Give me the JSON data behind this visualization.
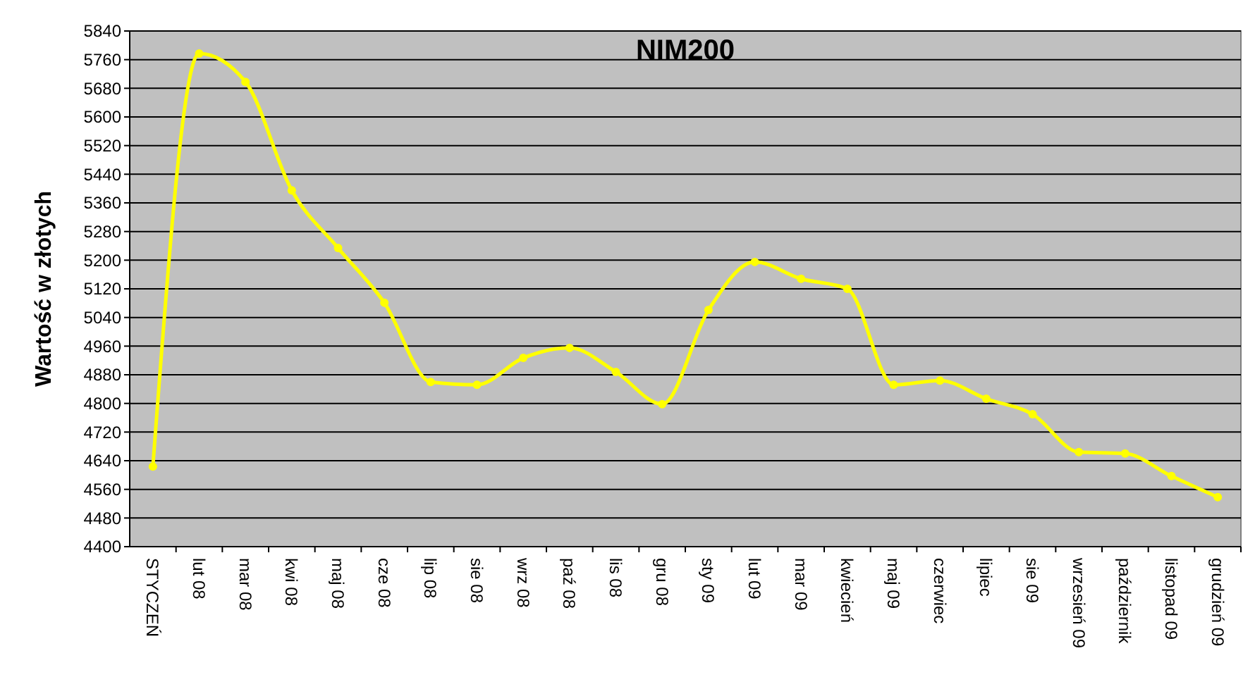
{
  "chart_data": {
    "type": "line",
    "title": "NIM200",
    "ylabel": "Wartość w złotych",
    "categories": [
      "STYCZEŃ",
      "lut 08",
      "mar 08",
      "kwi 08",
      "maj 08",
      "cze 08",
      "lip 08",
      "sie 08",
      "wrz 08",
      "paź 08",
      "lis 08",
      "gru 08",
      "sty 09",
      "lut 09",
      "mar 09",
      "kwiecień",
      "maj 09",
      "czerwiec",
      "lipiec",
      "sie 09",
      "wrzesień 09",
      "październik",
      "listopad 09",
      "grudzień 09"
    ],
    "series": [
      {
        "color": "#ffff00",
        "values": [
          4624,
          5777,
          5698,
          5395,
          5234,
          5081,
          4860,
          4852,
          4927,
          4955,
          4888,
          4798,
          5061,
          5195,
          5148,
          5120,
          4852,
          4864,
          4813,
          4770,
          4664,
          4660,
          4597,
          4538
        ]
      }
    ],
    "ylim": [
      4400,
      5840
    ],
    "yticks": [
      4400,
      4480,
      4560,
      4640,
      4720,
      4800,
      4880,
      4960,
      5040,
      5120,
      5200,
      5280,
      5360,
      5440,
      5520,
      5600,
      5680,
      5760,
      5840
    ],
    "grid": "y",
    "marker": "circle"
  }
}
